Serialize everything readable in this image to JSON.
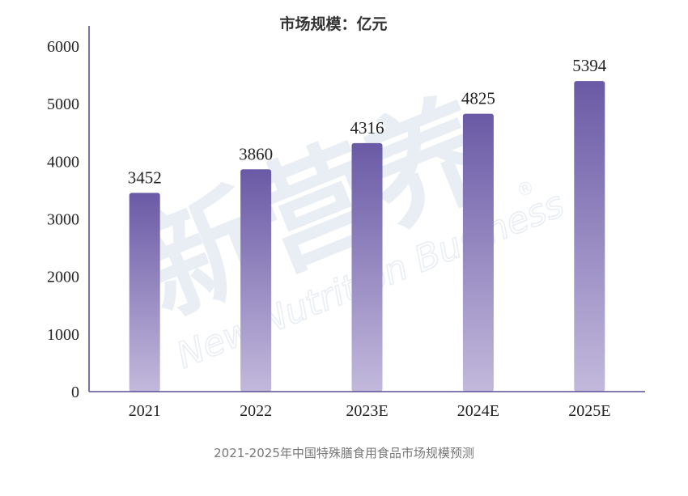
{
  "chart_data": {
    "type": "bar",
    "title": "市场规模：亿元",
    "categories": [
      "2021",
      "2022",
      "2023E",
      "2024E",
      "2025E"
    ],
    "values": [
      3452,
      3860,
      4316,
      4825,
      5394
    ],
    "ylim": [
      0,
      6000
    ],
    "yticks": [
      0,
      1000,
      2000,
      3000,
      4000,
      5000,
      6000
    ],
    "xlabel": "",
    "ylabel": "",
    "grid": false,
    "bar_gradient": [
      "#6a5aa6",
      "#c2b9dc"
    ],
    "axis_color": "#5a4e96"
  },
  "watermark": {
    "cn": "新营养",
    "en": "New Nutrition Business",
    "mark": "®"
  },
  "caption": "2021-2025年中国特殊膳食用食品市场规模预测"
}
